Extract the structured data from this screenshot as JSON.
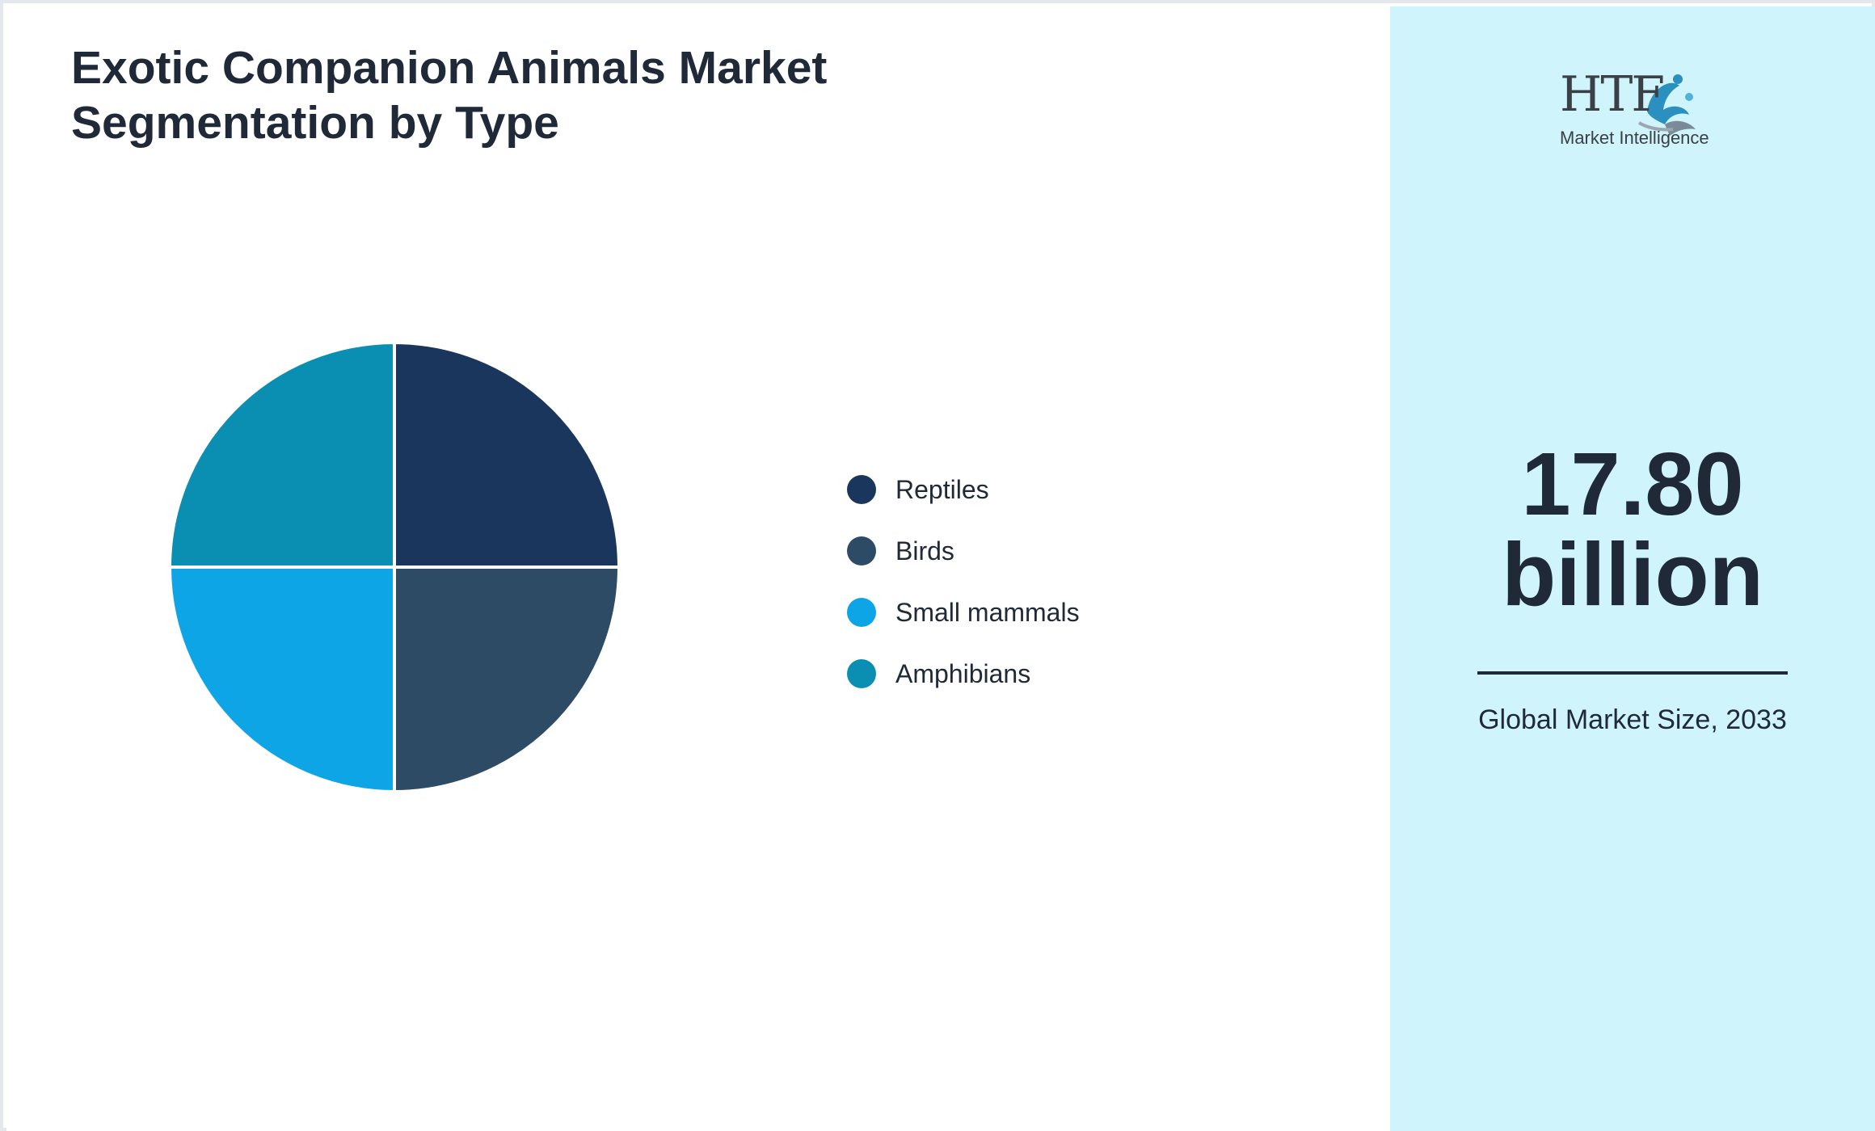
{
  "chart_data": {
    "type": "pie",
    "title": "Exotic Companion Animals Market Segmentation by Type",
    "categories": [
      "Reptiles",
      "Birds",
      "Small mammals",
      "Amphibians"
    ],
    "values": [
      25,
      25,
      25,
      25
    ],
    "colors": [
      "#1b365d",
      "#2e4b66",
      "#0ea5e6",
      "#0a8fb3"
    ],
    "legend_position": "right"
  },
  "logo": {
    "letters": "HTF",
    "subtitle": "Market Intelligence"
  },
  "stat": {
    "value": "17.80 billion",
    "caption": "Global Market Size, 2033"
  },
  "theme": {
    "side_panel_color": "#cff4fc",
    "text_color": "#1f2937"
  }
}
